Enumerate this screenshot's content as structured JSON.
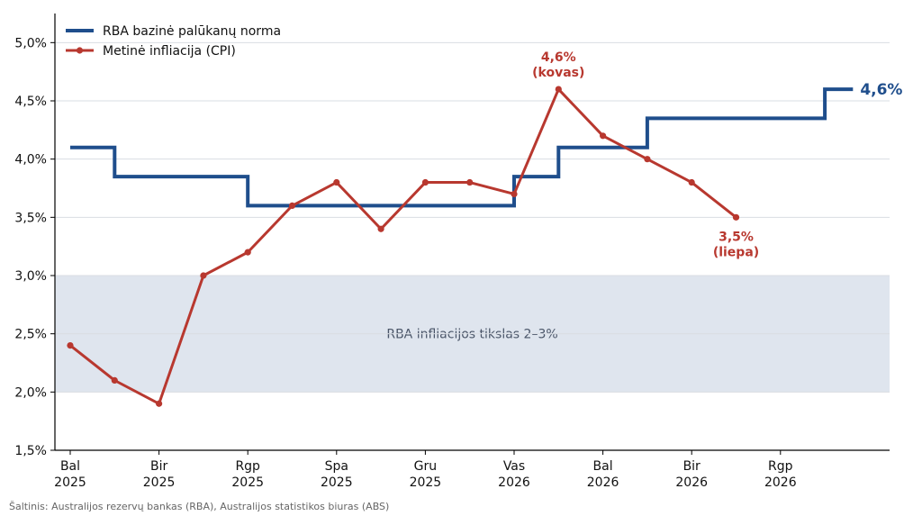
{
  "chart_data": {
    "type": "line",
    "ylim": [
      1.5,
      5.25
    ],
    "yticks": [
      1.5,
      2.0,
      2.5,
      3.0,
      3.5,
      4.0,
      4.5,
      5.0
    ],
    "ytick_labels": [
      "1,5%",
      "2,0%",
      "2,5%",
      "3,0%",
      "3,5%",
      "4,0%",
      "4,5%",
      "5,0%"
    ],
    "xticks": [
      "2025-04",
      "2025-06",
      "2025-08",
      "2025-10",
      "2025-12",
      "2026-02",
      "2026-04",
      "2026-06",
      "2026-08"
    ],
    "xtick_labels": [
      [
        "Bal",
        "2025"
      ],
      [
        "Bir",
        "2025"
      ],
      [
        "Rgp",
        "2025"
      ],
      [
        "Spa",
        "2025"
      ],
      [
        "Gru",
        "2025"
      ],
      [
        "Vas",
        "2026"
      ],
      [
        "Bal",
        "2026"
      ],
      [
        "Bir",
        "2026"
      ],
      [
        "Rgp",
        "2026"
      ]
    ],
    "grid": "horizontal",
    "legend_position": "top-left",
    "target_band": {
      "low": 2.0,
      "high": 3.0,
      "label": "RBA infliacijos tikslas 2–3%",
      "color": "#dfe5ee"
    },
    "series": [
      {
        "name": "RBA bazinė palūkanų norma",
        "style": "step",
        "color": "#1f4e8c",
        "points": [
          [
            "2025-04",
            4.1
          ],
          [
            "2025-05",
            3.85
          ],
          [
            "2025-08",
            3.6
          ],
          [
            "2026-02",
            3.85
          ],
          [
            "2026-03",
            4.1
          ],
          [
            "2026-05",
            4.35
          ],
          [
            "2026-09",
            4.6
          ],
          [
            "2026-09-20",
            4.6
          ]
        ]
      },
      {
        "name": "Metinė infliacija (CPI)",
        "style": "line-marker",
        "color": "#b8382f",
        "points": [
          [
            "2025-04",
            2.4
          ],
          [
            "2025-05",
            2.1
          ],
          [
            "2025-06",
            1.9
          ],
          [
            "2025-07",
            3.0
          ],
          [
            "2025-08",
            3.2
          ],
          [
            "2025-09",
            3.6
          ],
          [
            "2025-10",
            3.8
          ],
          [
            "2025-11",
            3.4
          ],
          [
            "2025-12",
            3.8
          ],
          [
            "2026-01",
            3.8
          ],
          [
            "2026-02",
            3.7
          ],
          [
            "2026-03",
            4.6
          ],
          [
            "2026-04",
            4.2
          ],
          [
            "2026-05",
            4.0
          ],
          [
            "2026-06",
            3.8
          ],
          [
            "2026-07",
            3.5
          ]
        ]
      }
    ],
    "annotations": [
      {
        "lines": [
          "4,6%",
          "(kovas)"
        ],
        "x": "2026-03",
        "y": 4.6,
        "color": "#b8382f",
        "placement": "above"
      },
      {
        "lines": [
          "3,5%",
          "(liepa)"
        ],
        "x": "2026-07",
        "y": 3.5,
        "color": "#b8382f",
        "placement": "below"
      },
      {
        "lines": [
          "4,6%"
        ],
        "x": "2026-09-20",
        "y": 4.6,
        "color": "#1f4e8c",
        "placement": "right"
      }
    ]
  },
  "footer": {
    "source": "Šaltinis: Australijos rezervų bankas (RBA), Australijos statistikos biuras (ABS)"
  }
}
